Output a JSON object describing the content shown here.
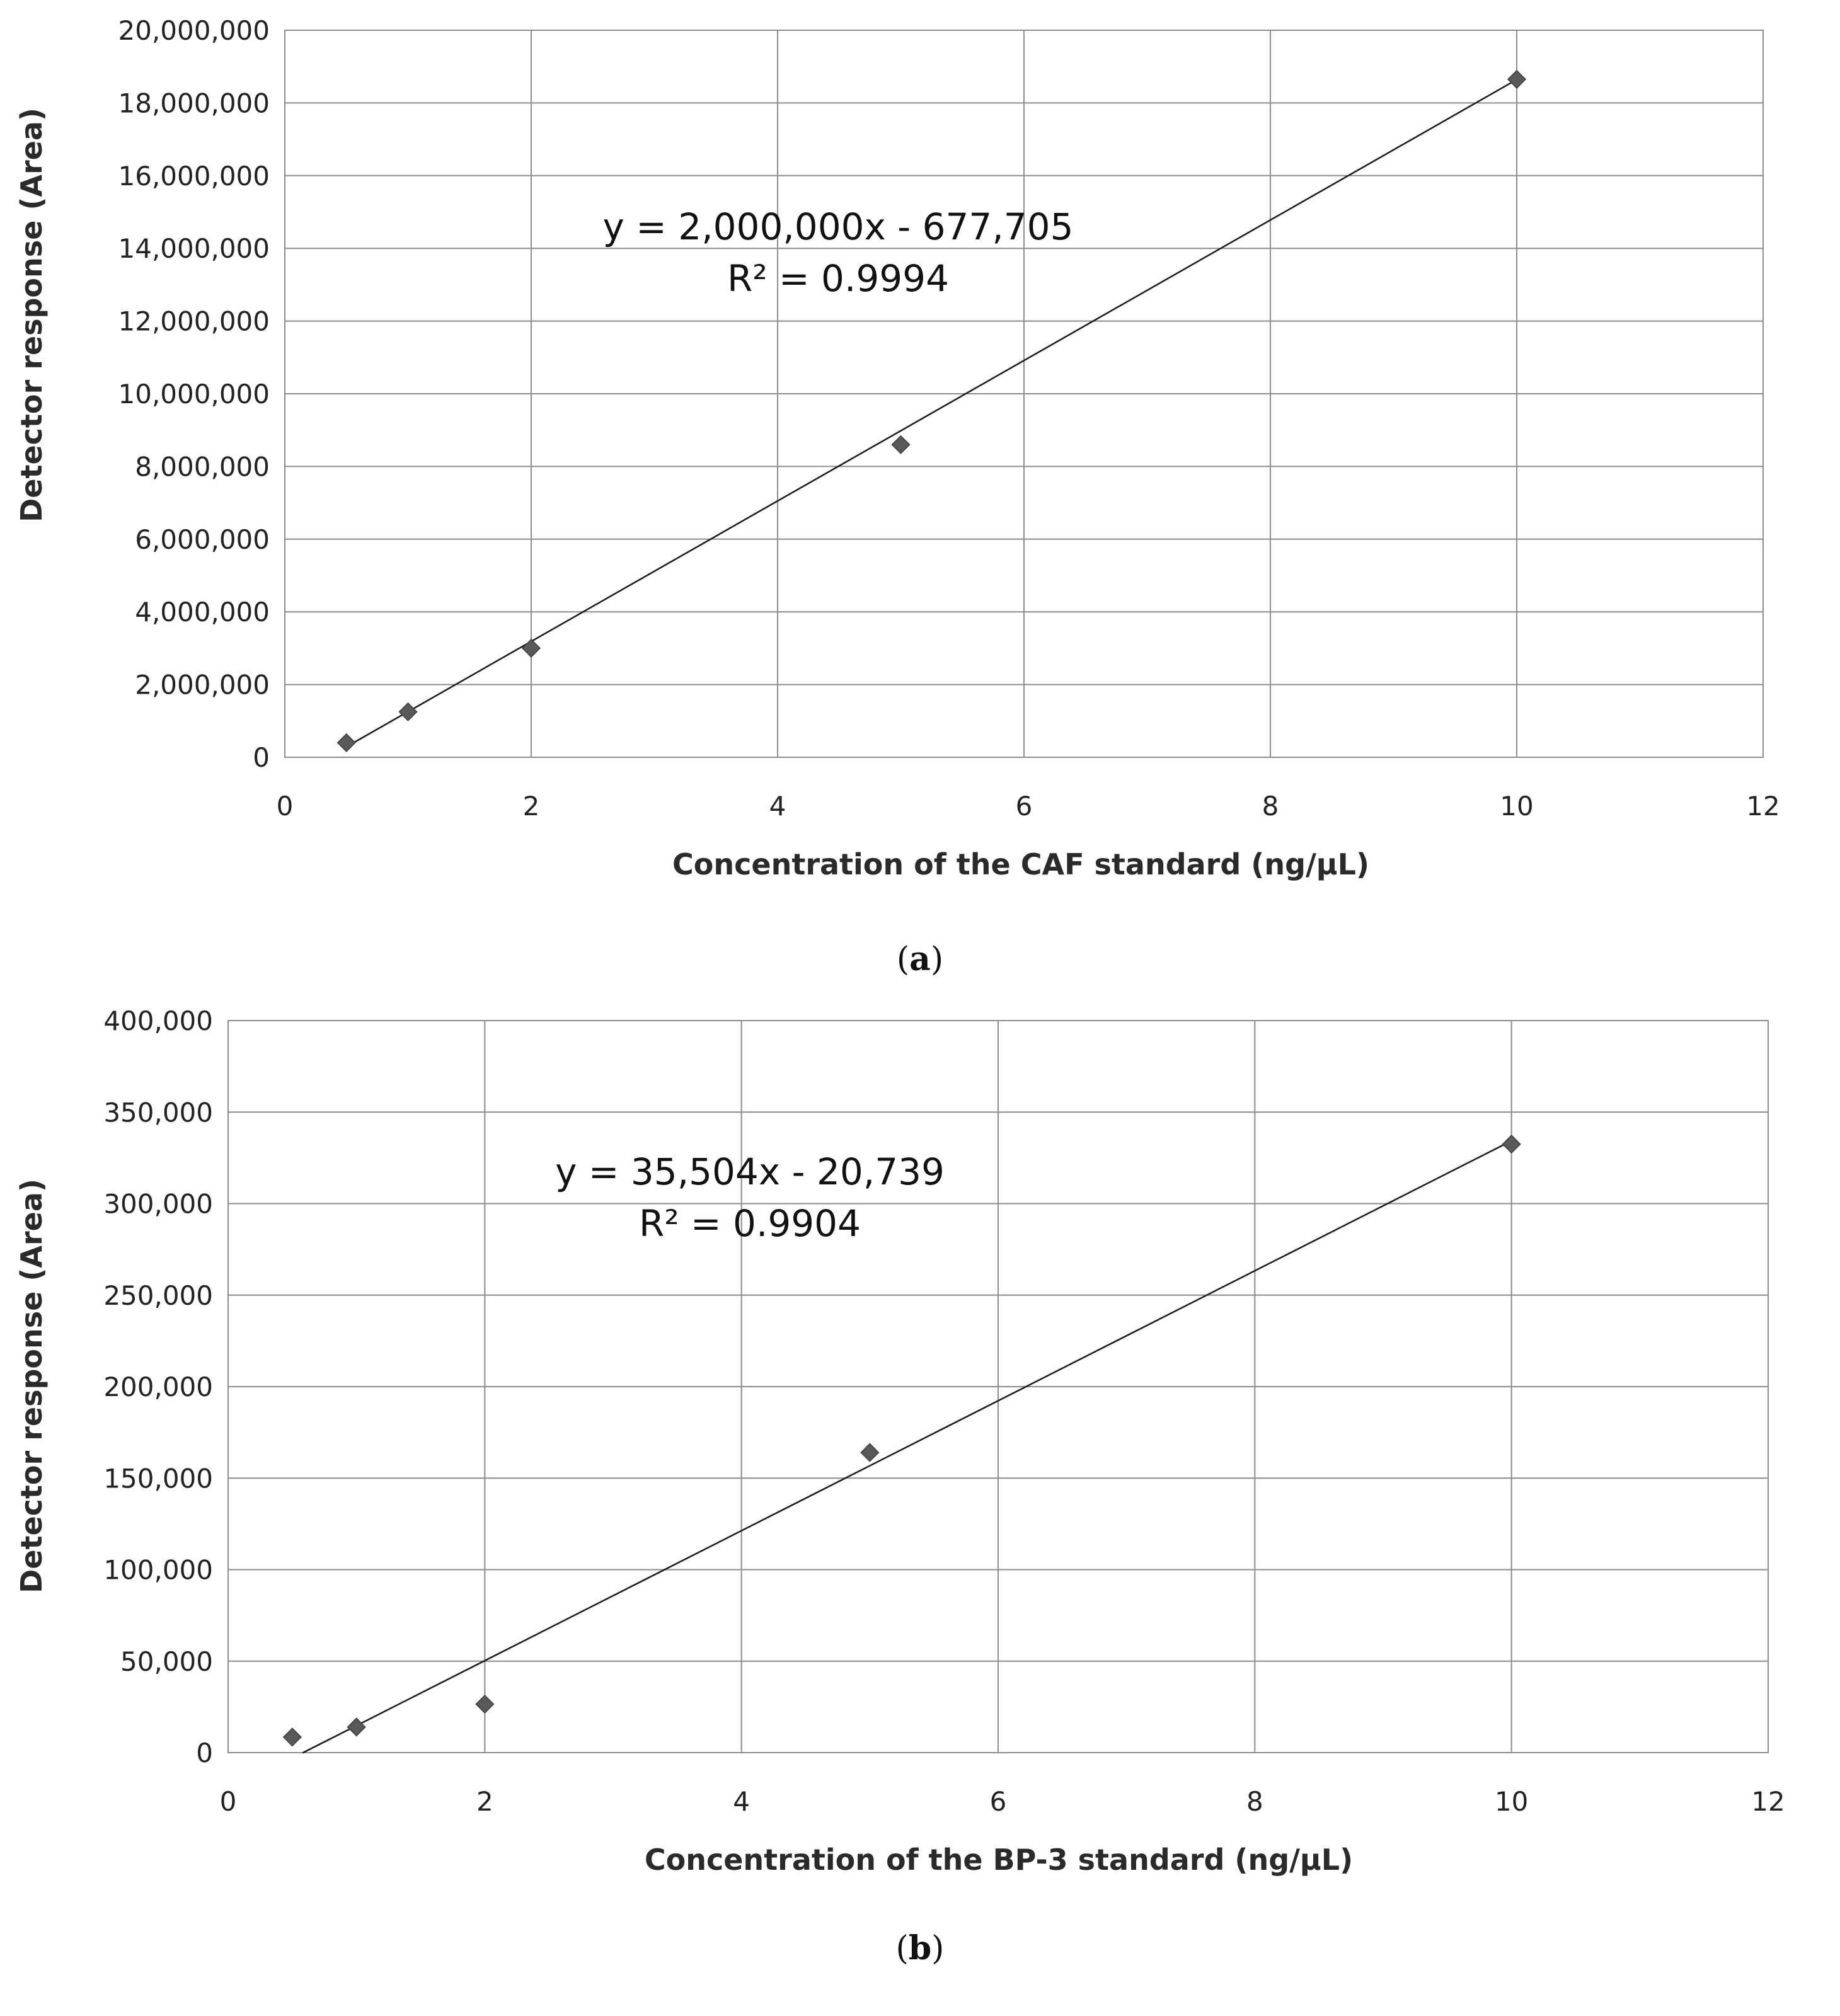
{
  "chart_data": [
    {
      "type": "scatter",
      "panel_label": "a",
      "xlabel": "Concentration of the CAF standard (ng/µL)",
      "ylabel": "Detector response (Area)",
      "xlim": [
        0,
        12
      ],
      "ylim": [
        0,
        20000000
      ],
      "x_ticks": [
        "0",
        "2",
        "4",
        "6",
        "8",
        "10",
        "12"
      ],
      "y_ticks": [
        "0",
        "2,000,000",
        "4,000,000",
        "6,000,000",
        "8,000,000",
        "10,000,000",
        "12,000,000",
        "14,000,000",
        "16,000,000",
        "18,000,000",
        "20,000,000"
      ],
      "grid": true,
      "series": [
        {
          "x": [
            0.5,
            1,
            2,
            5,
            10
          ],
          "y": [
            400000,
            1250000,
            3000000,
            8600000,
            18650000
          ]
        }
      ],
      "trendline": {
        "slope": 1932000,
        "intercept": -677705,
        "x_range": [
          0.5,
          10
        ]
      },
      "equation": "y = 2,000,000x - 677,705",
      "r_squared": "R² = 0.9994",
      "colors": {
        "marker": "#595959",
        "line": "#1a1a1a",
        "grid": "#8c8c8c"
      }
    },
    {
      "type": "scatter",
      "panel_label": "b",
      "xlabel": "Concentration of the BP-3 standard (ng/µL)",
      "ylabel": "Detector response (Area)",
      "xlim": [
        0,
        12
      ],
      "ylim": [
        0,
        400000
      ],
      "x_ticks": [
        "0",
        "2",
        "4",
        "6",
        "8",
        "10",
        "12"
      ],
      "y_ticks": [
        "0",
        "50,000",
        "100,000",
        "150,000",
        "200,000",
        "250,000",
        "300,000",
        "350,000",
        "400,000"
      ],
      "grid": true,
      "series": [
        {
          "x": [
            0.5,
            1,
            2,
            5,
            10
          ],
          "y": [
            8500,
            14000,
            26500,
            164000,
            332500
          ]
        }
      ],
      "trendline": {
        "slope": 35504,
        "intercept": -20739,
        "x_range": [
          0.58,
          10
        ]
      },
      "equation": "y = 35,504x - 20,739",
      "r_squared": "R² = 0.9904",
      "colors": {
        "marker": "#595959",
        "line": "#1a1a1a",
        "grid": "#8c8c8c"
      }
    }
  ]
}
